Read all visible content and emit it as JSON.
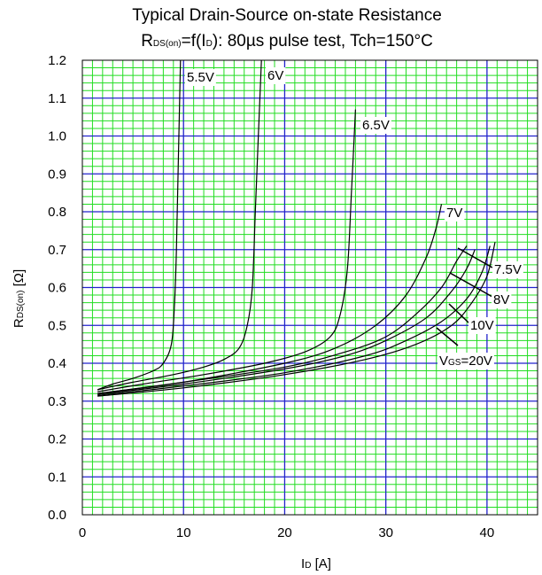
{
  "chart_data": {
    "type": "line",
    "title": "Typical Drain-Source on-state Resistance",
    "subtitle": {
      "main": "R",
      "main_sub": "DS(on)",
      "mid": "=f(I",
      "mid_sub": "D",
      "rest": "): 80µs pulse test, Tch=150°C"
    },
    "xlabel": {
      "main": "I",
      "sub": "D",
      "rest": " [A]"
    },
    "ylabel": {
      "main": "R",
      "sub": "DS(on)",
      "rest": " [Ω]"
    },
    "xlim": [
      0,
      45
    ],
    "ylim": [
      0,
      1.2
    ],
    "x_ticks": [
      0,
      10,
      20,
      30,
      40
    ],
    "x_tick_labels": [
      "0",
      "10",
      "20",
      "30",
      "40"
    ],
    "y_ticks": [
      0,
      0.1,
      0.2,
      0.3,
      0.4,
      0.5,
      0.6,
      0.7,
      0.8,
      0.9,
      1.0,
      1.1,
      1.2
    ],
    "y_tick_labels": [
      "0.0",
      "0.1",
      "0.2",
      "0.3",
      "0.4",
      "0.5",
      "0.6",
      "0.7",
      "0.8",
      "0.9",
      "1.0",
      "1.1",
      "1.2"
    ],
    "grid": true,
    "grid_major_color": "#2222cc",
    "grid_minor_color": "#22dd22",
    "series": [
      {
        "name": "5.5V",
        "x": [
          1.5,
          3,
          5,
          7,
          8,
          8.8,
          9.1,
          9.3,
          9.5,
          9.7
        ],
        "y": [
          0.33,
          0.345,
          0.36,
          0.38,
          0.4,
          0.45,
          0.55,
          0.7,
          0.95,
          1.2
        ]
      },
      {
        "name": "6V",
        "x": [
          1.5,
          5,
          9,
          12,
          14,
          15.5,
          16.3,
          16.8,
          17.1,
          17.4,
          17.7
        ],
        "y": [
          0.33,
          0.35,
          0.37,
          0.39,
          0.41,
          0.44,
          0.5,
          0.6,
          0.8,
          1.0,
          1.2
        ]
      },
      {
        "name": "6.5V",
        "x": [
          1.5,
          6,
          12,
          18,
          22,
          24.5,
          25.5,
          26.2,
          26.6,
          27
        ],
        "y": [
          0.325,
          0.345,
          0.37,
          0.4,
          0.43,
          0.47,
          0.53,
          0.65,
          0.85,
          1.07
        ]
      },
      {
        "name": "7V",
        "x": [
          1.5,
          10,
          20,
          25,
          29,
          32,
          34,
          35,
          35.5
        ],
        "y": [
          0.32,
          0.35,
          0.4,
          0.44,
          0.5,
          0.58,
          0.68,
          0.76,
          0.82
        ]
      },
      {
        "name": "7.5V",
        "x": [
          1.5,
          10,
          20,
          26,
          30,
          33,
          35.5,
          37,
          38
        ],
        "y": [
          0.32,
          0.35,
          0.39,
          0.43,
          0.47,
          0.53,
          0.6,
          0.67,
          0.71
        ]
      },
      {
        "name": "8V",
        "x": [
          1.5,
          10,
          20,
          26,
          30,
          34,
          36.5,
          38,
          38.8
        ],
        "y": [
          0.318,
          0.345,
          0.385,
          0.42,
          0.46,
          0.52,
          0.59,
          0.65,
          0.7
        ]
      },
      {
        "name": "10V",
        "x": [
          1.5,
          10,
          20,
          28,
          32,
          35.5,
          38,
          39.5,
          40.3
        ],
        "y": [
          0.315,
          0.34,
          0.375,
          0.42,
          0.46,
          0.51,
          0.57,
          0.64,
          0.71
        ]
      },
      {
        "name": "VGS=20V",
        "x": [
          1.5,
          10,
          20,
          28,
          33,
          36.5,
          38.5,
          40,
          40.8
        ],
        "y": [
          0.313,
          0.335,
          0.37,
          0.41,
          0.45,
          0.5,
          0.56,
          0.63,
          0.72
        ]
      }
    ],
    "curve_labels": [
      {
        "text": "5.5V",
        "series": "5.5V"
      },
      {
        "text": "6V",
        "series": "6V"
      },
      {
        "text": "6.5V",
        "series": "6.5V"
      },
      {
        "text": "7V",
        "series": "7V"
      },
      {
        "text": "7.5V",
        "series": "7.5V"
      },
      {
        "text": "8V",
        "series": "8V"
      },
      {
        "text": "10V",
        "series": "10V"
      },
      {
        "main": "V",
        "sub": "GS",
        "rest": "=20V",
        "series": "VGS=20V"
      }
    ]
  }
}
